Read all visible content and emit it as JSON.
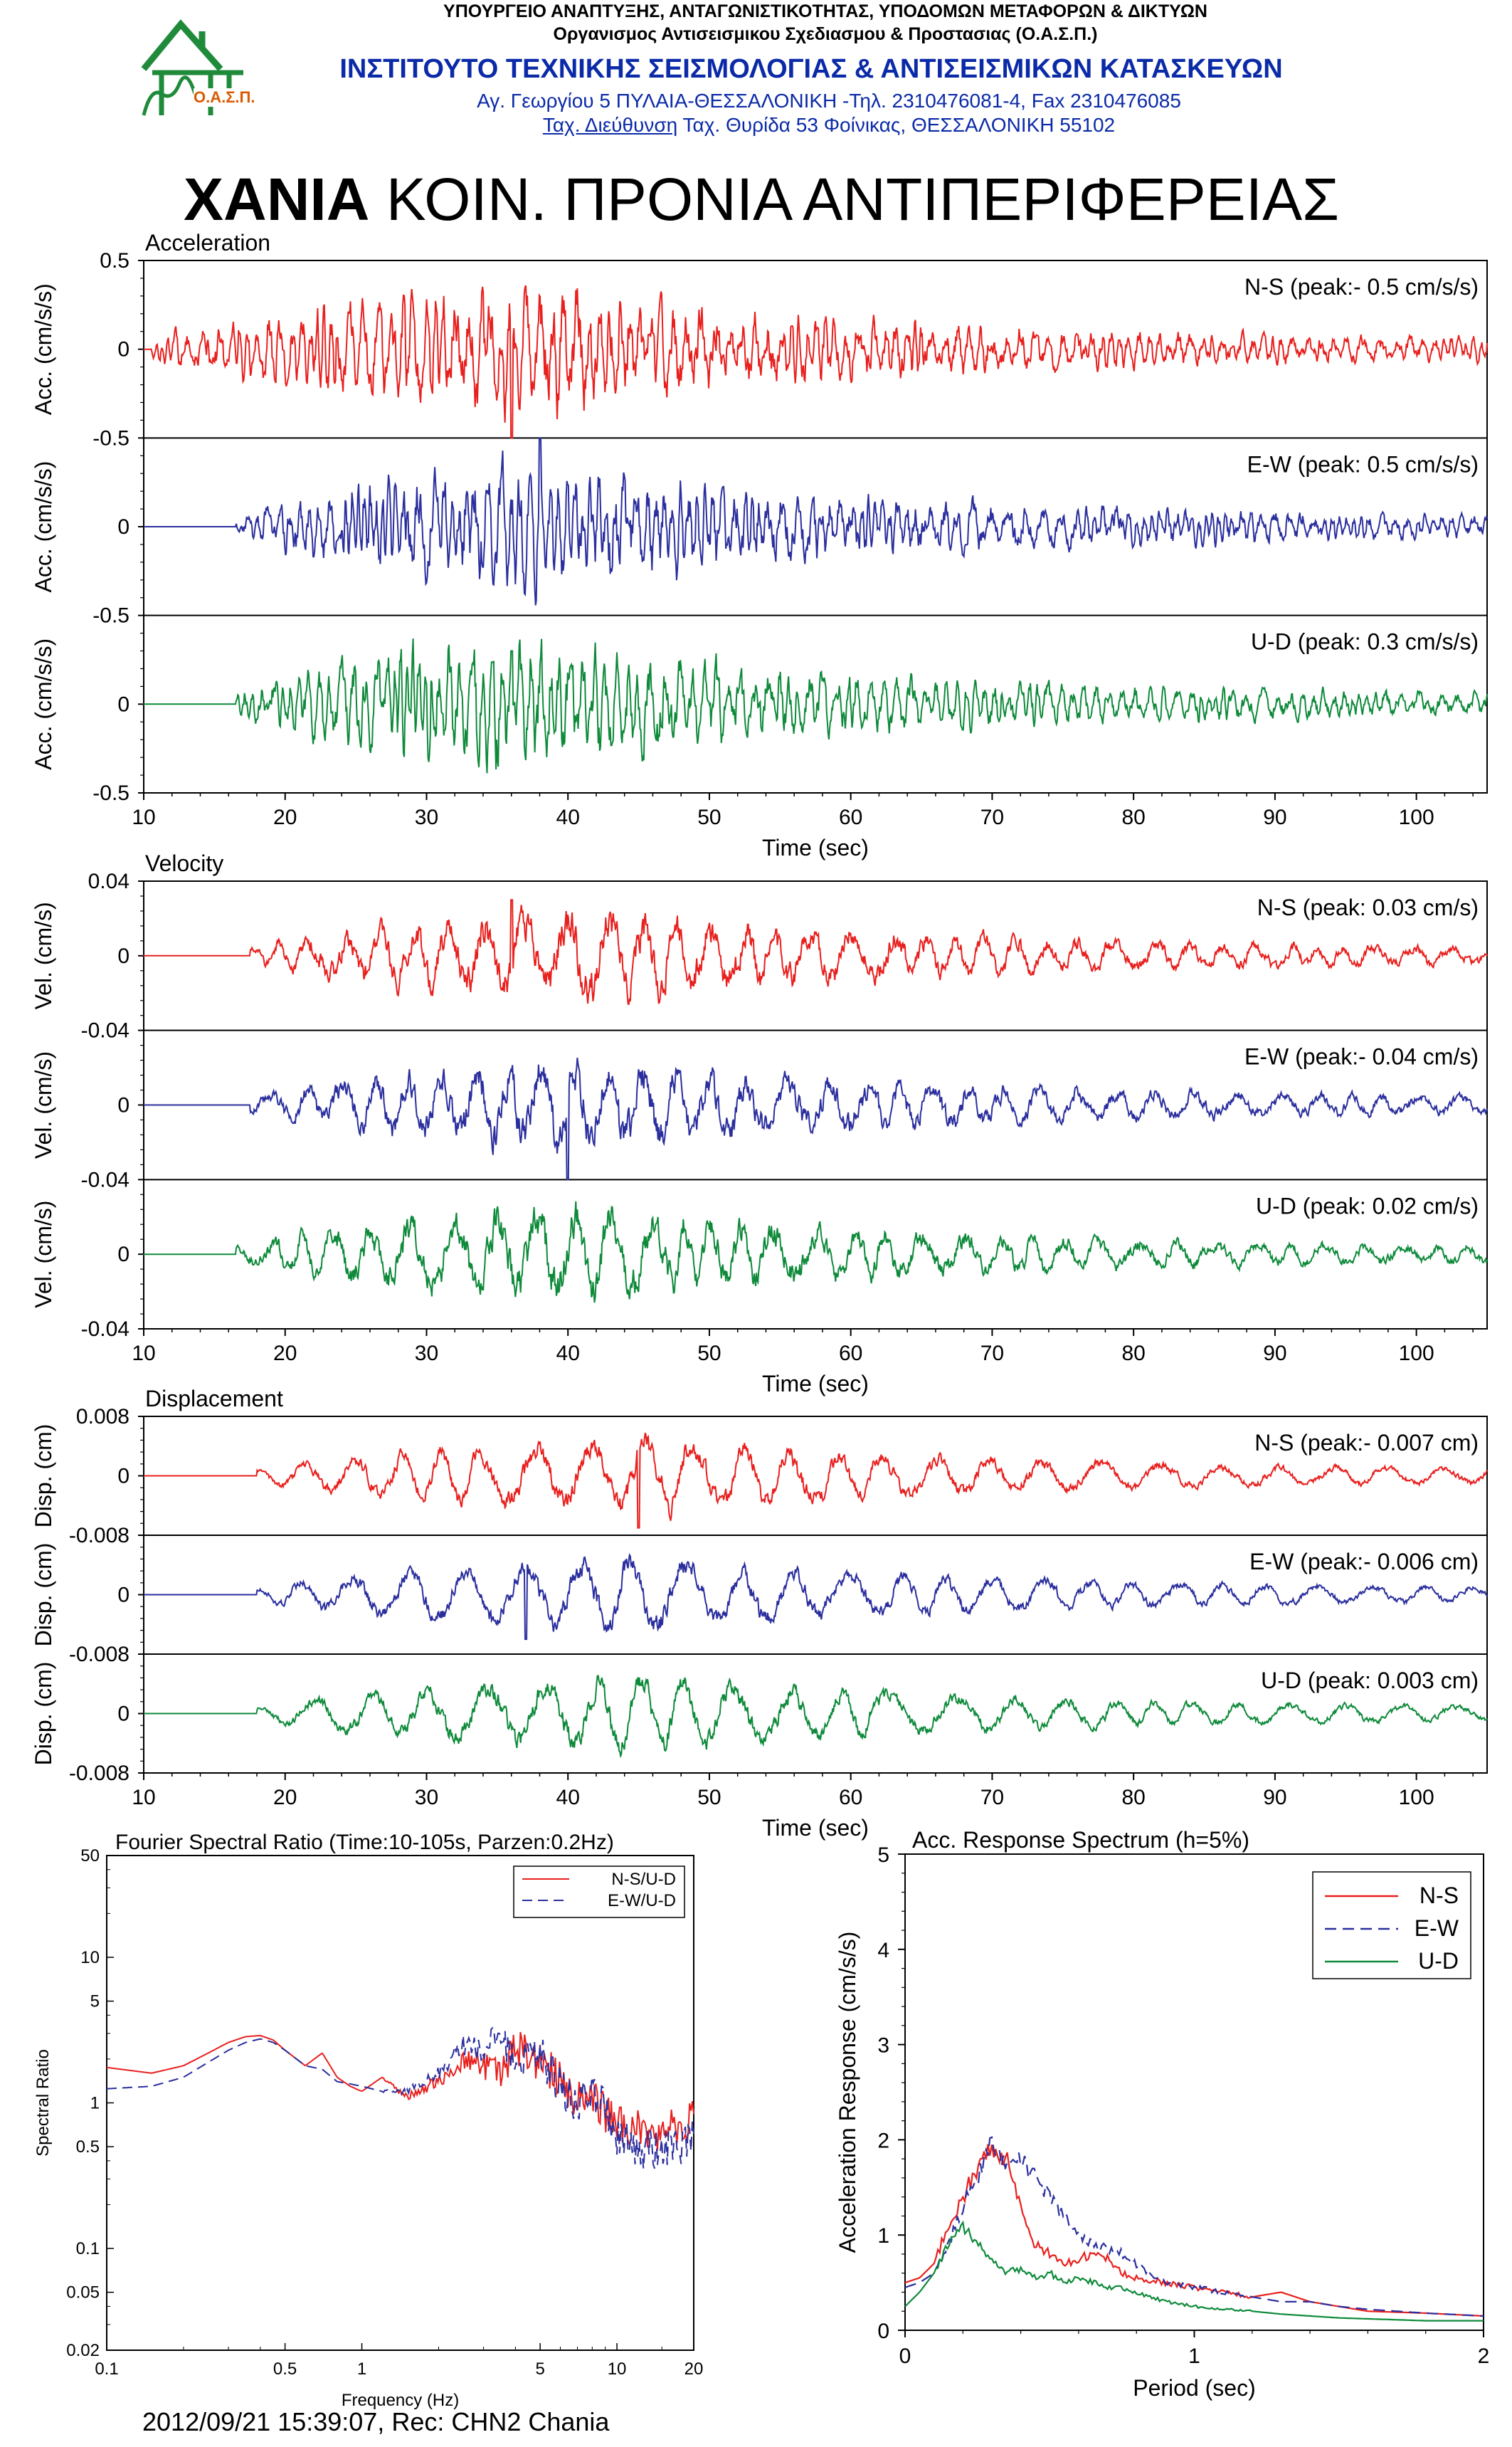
{
  "header": {
    "line1": "ΥΠΟΥΡΓΕΙΟ ΑΝΑΠΤΥΞΗΣ, ΑΝΤΑΓΩΝΙΣΤΙΚΟΤΗΤΑΣ, ΥΠΟΔΟΜΩΝ ΜΕΤΑΦΟΡΩΝ & ΔΙΚΤΥΩΝ",
    "line2": "Οργανισμος Αντισεισμικου Σχεδιασμου & Προστασιας (Ο.Α.Σ.Π.)",
    "line3": "ΙΝΣΤΙΤΟΥΤΟ ΤΕΧΝΙΚΗΣ ΣΕΙΣΜΟΛΟΓΙΑΣ & ΑΝΤΙΣΕΙΣΜΙΚΩΝ ΚΑΤΑΣΚΕΥΩΝ",
    "line4": "Αγ. Γεωργίου 5 ΠΥΛΑΙΑ-ΘΕΣΣΑΛΟΝΙΚΗ -Τηλ. 2310476081-4,  Fax 2310476085",
    "line5_underlined": "Ταχ. Διεύθυνση",
    "line5_rest": " Ταχ. Θυρίδα 53 Φοίνικας, ΘΕΣΣΑΛΟΝΙΚΗ 55102",
    "logo_text": "Ο.Α.Σ.Π."
  },
  "station": {
    "bold": "ΧΑΝΙΑ",
    "rest": " ΚΟΙΝ. ΠΡΟΝΙΑ ΑΝΤΙΠΕΡΙΦΕΡΕΙΑΣ"
  },
  "colors": {
    "ns": "#e8201e",
    "ew": "#2b2f9e",
    "ud": "#0e8a3a"
  },
  "footer": "2012/09/21 15:39:07, Rec: CHN2 Chania",
  "chart_data": [
    {
      "type": "line",
      "title": "Acceleration",
      "xlabel": "Time (sec)",
      "ylabel": "Acc. (cm/s/s)",
      "xlim": [
        10,
        105
      ],
      "xticks": [
        "10",
        "20",
        "30",
        "40",
        "50",
        "60",
        "70",
        "80",
        "90",
        "100"
      ],
      "ylim": [
        -0.5,
        0.5
      ],
      "yticks": [
        "0.5",
        "0",
        "-0.5",
        "0",
        "-0.5",
        "0",
        "-0.5"
      ],
      "series": [
        {
          "name": "N-S",
          "label": "N-S (peak:- 0.5 cm/s/s)",
          "peak": -0.5,
          "onset": 10.5,
          "peak_time": 36,
          "envelope_peak_time": 38
        },
        {
          "name": "E-W",
          "label": "E-W (peak: 0.5 cm/s/s)",
          "peak": 0.5,
          "onset": 16.5,
          "peak_time": 38,
          "envelope_peak_time": 38
        },
        {
          "name": "U-D",
          "label": "U-D (peak: 0.3 cm/s/s)",
          "peak": 0.3,
          "onset": 16.5,
          "peak_time": 36,
          "envelope_peak_time": 36
        }
      ]
    },
    {
      "type": "line",
      "title": "Velocity",
      "xlabel": "Time (sec)",
      "ylabel": "Vel. (cm/s)",
      "xlim": [
        10,
        105
      ],
      "xticks": [
        "10",
        "20",
        "30",
        "40",
        "50",
        "60",
        "70",
        "80",
        "90",
        "100"
      ],
      "ylim": [
        -0.04,
        0.04
      ],
      "yticks": [
        "0.04",
        "0",
        "-0.04",
        "0",
        "-0.04",
        "0",
        "-0.04"
      ],
      "series": [
        {
          "name": "N-S",
          "label": "N-S (peak: 0.03 cm/s)",
          "peak": 0.03,
          "onset": 17.5,
          "peak_time": 36,
          "envelope_peak_time": 42
        },
        {
          "name": "E-W",
          "label": "E-W (peak:- 0.04 cm/s)",
          "peak": -0.04,
          "onset": 17.5,
          "peak_time": 40,
          "envelope_peak_time": 42
        },
        {
          "name": "U-D",
          "label": "U-D (peak: 0.02 cm/s)",
          "peak": 0.02,
          "onset": 16.5,
          "peak_time": 38,
          "envelope_peak_time": 40
        }
      ]
    },
    {
      "type": "line",
      "title": "Displacement",
      "xlabel": "Time (sec)",
      "ylabel": "Disp. (cm)",
      "xlim": [
        10,
        105
      ],
      "xticks": [
        "10",
        "20",
        "30",
        "40",
        "50",
        "60",
        "70",
        "80",
        "90",
        "100"
      ],
      "ylim": [
        -0.008,
        0.008
      ],
      "yticks": [
        "0.008",
        "0",
        "-0.008",
        "0",
        "-0.008",
        "0",
        "-0.008"
      ],
      "series": [
        {
          "name": "N-S",
          "label": "N-S (peak:- 0.007 cm)",
          "peak": -0.007,
          "onset": 18,
          "peak_time": 45,
          "envelope_peak_time": 46
        },
        {
          "name": "E-W",
          "label": "E-W (peak:- 0.006 cm)",
          "peak": -0.006,
          "onset": 18,
          "peak_time": 37,
          "envelope_peak_time": 45
        },
        {
          "name": "U-D",
          "label": "U-D (peak: 0.003 cm)",
          "peak": 0.003,
          "onset": 18,
          "peak_time": 38,
          "envelope_peak_time": 45
        }
      ]
    },
    {
      "type": "line",
      "title": "Fourier Spectral Ratio (Time:10-105s, Parzen:0.2Hz)",
      "xlabel": "Frequency (Hz)",
      "ylabel": "Spectral Ratio",
      "xscale": "log",
      "yscale": "log",
      "xlim": [
        0.1,
        20
      ],
      "ylim": [
        0.02,
        50
      ],
      "xticks": [
        "0.1",
        "0.5",
        "1",
        "5",
        "10",
        "20"
      ],
      "yticks": [
        "50",
        "10",
        "5",
        "1",
        "0.5",
        "0.1",
        "0.05",
        "0.02"
      ],
      "legend_position": "top-right",
      "series": [
        {
          "name": "N-S/U-D",
          "x": [
            0.1,
            0.15,
            0.2,
            0.25,
            0.3,
            0.35,
            0.4,
            0.45,
            0.5,
            0.6,
            0.7,
            0.8,
            0.9,
            1.0,
            1.2,
            1.5,
            2,
            2.5,
            3,
            3.5,
            4,
            5,
            6,
            7,
            8,
            10,
            12,
            15,
            20
          ],
          "values": [
            1.75,
            1.6,
            1.8,
            2.2,
            2.6,
            2.85,
            2.9,
            2.7,
            2.3,
            1.8,
            2.2,
            1.5,
            1.3,
            1.2,
            1.5,
            1.1,
            1.4,
            2.0,
            1.8,
            1.5,
            2.4,
            1.9,
            1.5,
            1.0,
            1.1,
            0.7,
            0.65,
            0.6,
            0.8
          ]
        },
        {
          "name": "E-W/U-D",
          "x": [
            0.1,
            0.15,
            0.2,
            0.25,
            0.3,
            0.35,
            0.4,
            0.45,
            0.5,
            0.6,
            0.7,
            0.8,
            0.9,
            1.0,
            1.2,
            1.5,
            2,
            2.5,
            3,
            3.5,
            4,
            5,
            6,
            7,
            8,
            10,
            12,
            15,
            20
          ],
          "values": [
            1.25,
            1.3,
            1.5,
            1.9,
            2.3,
            2.6,
            2.75,
            2.6,
            2.3,
            1.8,
            1.7,
            1.4,
            1.35,
            1.3,
            1.2,
            1.2,
            1.6,
            2.5,
            2.2,
            3.0,
            1.8,
            2.2,
            1.3,
            0.9,
            1.3,
            0.6,
            0.5,
            0.45,
            0.55
          ]
        }
      ]
    },
    {
      "type": "line",
      "title": "Acc. Response Spectrum (h=5%)",
      "xlabel": "Period (sec)",
      "ylabel": "Acceleration Response (cm/s/s)",
      "xlim": [
        0,
        2
      ],
      "ylim": [
        0,
        5
      ],
      "xticks": [
        "0",
        "1",
        "2"
      ],
      "yticks": [
        "0",
        "1",
        "2",
        "3",
        "4",
        "5"
      ],
      "legend_position": "top-right",
      "series": [
        {
          "name": "N-S",
          "x": [
            0,
            0.05,
            0.1,
            0.15,
            0.2,
            0.25,
            0.3,
            0.35,
            0.4,
            0.45,
            0.5,
            0.55,
            0.6,
            0.65,
            0.7,
            0.75,
            0.8,
            0.9,
            1.0,
            1.1,
            1.2,
            1.3,
            1.4,
            1.5,
            1.6,
            1.8,
            2.0
          ],
          "values": [
            0.5,
            0.55,
            0.7,
            1.1,
            1.4,
            1.7,
            1.9,
            1.8,
            1.3,
            0.9,
            0.8,
            0.7,
            0.75,
            0.8,
            0.75,
            0.6,
            0.55,
            0.5,
            0.45,
            0.4,
            0.35,
            0.4,
            0.3,
            0.25,
            0.2,
            0.18,
            0.15
          ]
        },
        {
          "name": "E-W",
          "x": [
            0,
            0.05,
            0.1,
            0.15,
            0.2,
            0.25,
            0.3,
            0.35,
            0.4,
            0.45,
            0.5,
            0.55,
            0.6,
            0.65,
            0.7,
            0.75,
            0.8,
            0.9,
            1.0,
            1.1,
            1.2,
            1.3,
            1.4,
            1.5,
            1.6,
            1.8,
            2.0
          ],
          "values": [
            0.45,
            0.5,
            0.6,
            0.9,
            1.3,
            1.6,
            2.0,
            1.7,
            1.8,
            1.6,
            1.4,
            1.2,
            1.0,
            0.9,
            0.85,
            0.8,
            0.7,
            0.5,
            0.45,
            0.4,
            0.35,
            0.3,
            0.3,
            0.25,
            0.22,
            0.18,
            0.15
          ]
        },
        {
          "name": "U-D",
          "x": [
            0,
            0.05,
            0.1,
            0.15,
            0.2,
            0.25,
            0.3,
            0.35,
            0.4,
            0.45,
            0.5,
            0.55,
            0.6,
            0.65,
            0.7,
            0.75,
            0.8,
            0.9,
            1.0,
            1.1,
            1.2,
            1.3,
            1.4,
            1.5,
            1.6,
            1.8,
            2.0
          ],
          "values": [
            0.25,
            0.4,
            0.6,
            0.9,
            1.1,
            0.9,
            0.75,
            0.6,
            0.65,
            0.55,
            0.6,
            0.5,
            0.55,
            0.5,
            0.45,
            0.45,
            0.4,
            0.3,
            0.25,
            0.22,
            0.2,
            0.17,
            0.15,
            0.13,
            0.12,
            0.1,
            0.1
          ]
        }
      ]
    }
  ]
}
